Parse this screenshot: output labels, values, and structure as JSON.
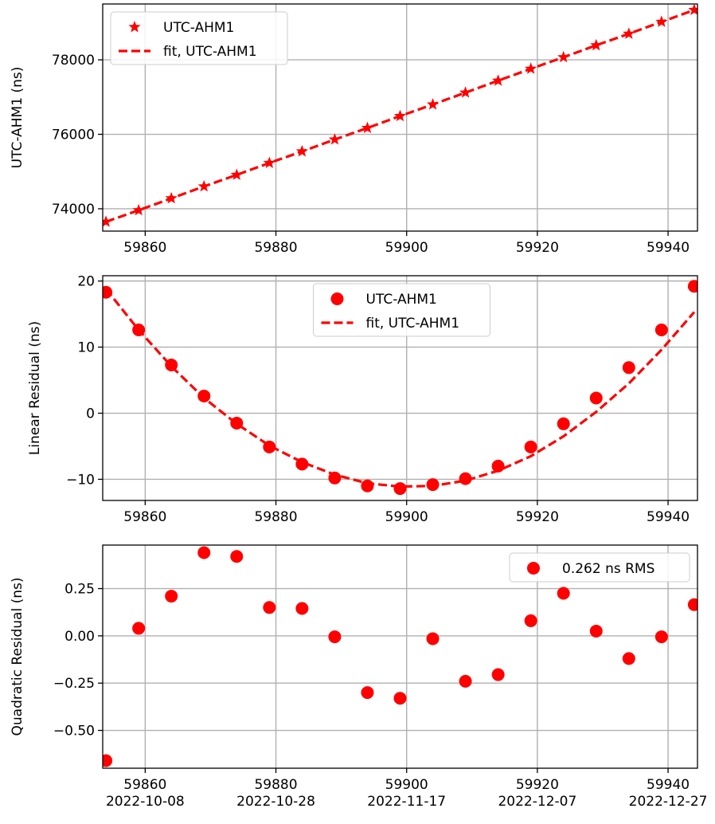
{
  "colors": {
    "series": "#ff0000",
    "grid": "#b0b0b0"
  },
  "chart_data": [
    {
      "type": "line",
      "ylabel": "UTC-AHM1 (ns)",
      "xlim": [
        59853.5,
        59944.5
      ],
      "ylim": [
        73400,
        79500
      ],
      "xticks": [
        59860,
        59880,
        59900,
        59920,
        59940
      ],
      "xtick_labels": [
        "59860",
        "59880",
        "59900",
        "59920",
        "59940"
      ],
      "yticks": [
        74000,
        76000,
        78000
      ],
      "ytick_labels": [
        "74000",
        "76000",
        "78000"
      ],
      "grid": true,
      "legend_position": "upper-left",
      "series": [
        {
          "name": "UTC-AHM1",
          "style": "star-markers",
          "x": [
            59854,
            59859,
            59864,
            59869,
            59874,
            59879,
            59884,
            59889,
            59894,
            59899,
            59904,
            59909,
            59914,
            59919,
            59924,
            59929,
            59934,
            59939,
            59944
          ],
          "y": [
            73650,
            73960,
            74280,
            74600,
            74910,
            75230,
            75540,
            75860,
            76170,
            76490,
            76800,
            77120,
            77440,
            77760,
            78070,
            78390,
            78700,
            79020,
            79340
          ]
        },
        {
          "name": "fit, UTC-AHM1",
          "style": "dashed-line",
          "x": [
            59854,
            59859,
            59864,
            59869,
            59874,
            59879,
            59884,
            59889,
            59894,
            59899,
            59904,
            59909,
            59914,
            59919,
            59924,
            59929,
            59934,
            59939,
            59944
          ],
          "y": [
            73650,
            73960,
            74280,
            74600,
            74910,
            75230,
            75540,
            75860,
            76170,
            76490,
            76800,
            77120,
            77440,
            77760,
            78070,
            78390,
            78700,
            79020,
            79340
          ]
        }
      ]
    },
    {
      "type": "line",
      "ylabel": "Linear Residual (ns)",
      "xlim": [
        59853.5,
        59944.5
      ],
      "ylim": [
        -13.2,
        20.8
      ],
      "xticks": [
        59860,
        59880,
        59900,
        59920,
        59940
      ],
      "xtick_labels": [
        "59860",
        "59880",
        "59900",
        "59920",
        "59940"
      ],
      "yticks": [
        -10,
        0,
        10,
        20
      ],
      "ytick_labels": [
        "−10",
        "0",
        "10",
        "20"
      ],
      "grid": true,
      "legend_position": "upper-center",
      "series": [
        {
          "name": "UTC-AHM1",
          "style": "circle-markers",
          "x": [
            59854,
            59859,
            59864,
            59869,
            59874,
            59879,
            59884,
            59889,
            59894,
            59899,
            59904,
            59909,
            59914,
            59919,
            59924,
            59929,
            59934,
            59939,
            59944
          ],
          "y": [
            18.3,
            12.6,
            7.3,
            2.6,
            -1.5,
            -5.1,
            -7.7,
            -9.8,
            -11.0,
            -11.4,
            -10.8,
            -9.9,
            -8.0,
            -5.1,
            -1.6,
            2.3,
            6.9,
            12.6,
            19.2
          ]
        },
        {
          "name": "fit, UTC-AHM1",
          "style": "dashed-line",
          "x": [
            59854,
            59859,
            59864,
            59869,
            59874,
            59879,
            59884,
            59889,
            59894,
            59899,
            59904,
            59909,
            59914,
            59919,
            59924,
            59929,
            59934,
            59939,
            59944
          ],
          "y": [
            18.8,
            12.6,
            7.1,
            2.3,
            -1.6,
            -4.9,
            -7.4,
            -9.3,
            -10.6,
            -11.1,
            -11.0,
            -10.2,
            -8.7,
            -6.5,
            -3.5,
            0.2,
            4.5,
            9.6,
            15.3
          ]
        }
      ]
    },
    {
      "type": "scatter",
      "ylabel": "Quadratic Residual (ns)",
      "xlim": [
        59853.5,
        59944.5
      ],
      "ylim": [
        -0.7,
        0.48
      ],
      "xticks": [
        59860,
        59880,
        59900,
        59920,
        59940
      ],
      "xtick_labels": [
        "59860\n2022-10-08",
        "59880\n2022-10-28",
        "59900\n2022-11-17",
        "59920\n2022-12-07",
        "59940\n2022-12-27"
      ],
      "yticks": [
        -0.5,
        -0.25,
        0.0,
        0.25
      ],
      "ytick_labels": [
        "−0.50",
        "−0.25",
        "0.00",
        "0.25"
      ],
      "grid": true,
      "legend_position": "upper-right",
      "series": [
        {
          "name": "0.262 ns RMS",
          "style": "circle-markers",
          "x": [
            59854,
            59859,
            59864,
            59869,
            59874,
            59879,
            59884,
            59889,
            59894,
            59899,
            59904,
            59909,
            59914,
            59919,
            59924,
            59929,
            59934,
            59939,
            59944
          ],
          "y": [
            -0.66,
            0.04,
            0.21,
            0.44,
            0.42,
            0.15,
            0.145,
            -0.005,
            -0.3,
            -0.33,
            -0.015,
            -0.24,
            -0.205,
            0.08,
            0.225,
            0.025,
            -0.12,
            -0.005,
            0.165
          ]
        }
      ]
    }
  ]
}
